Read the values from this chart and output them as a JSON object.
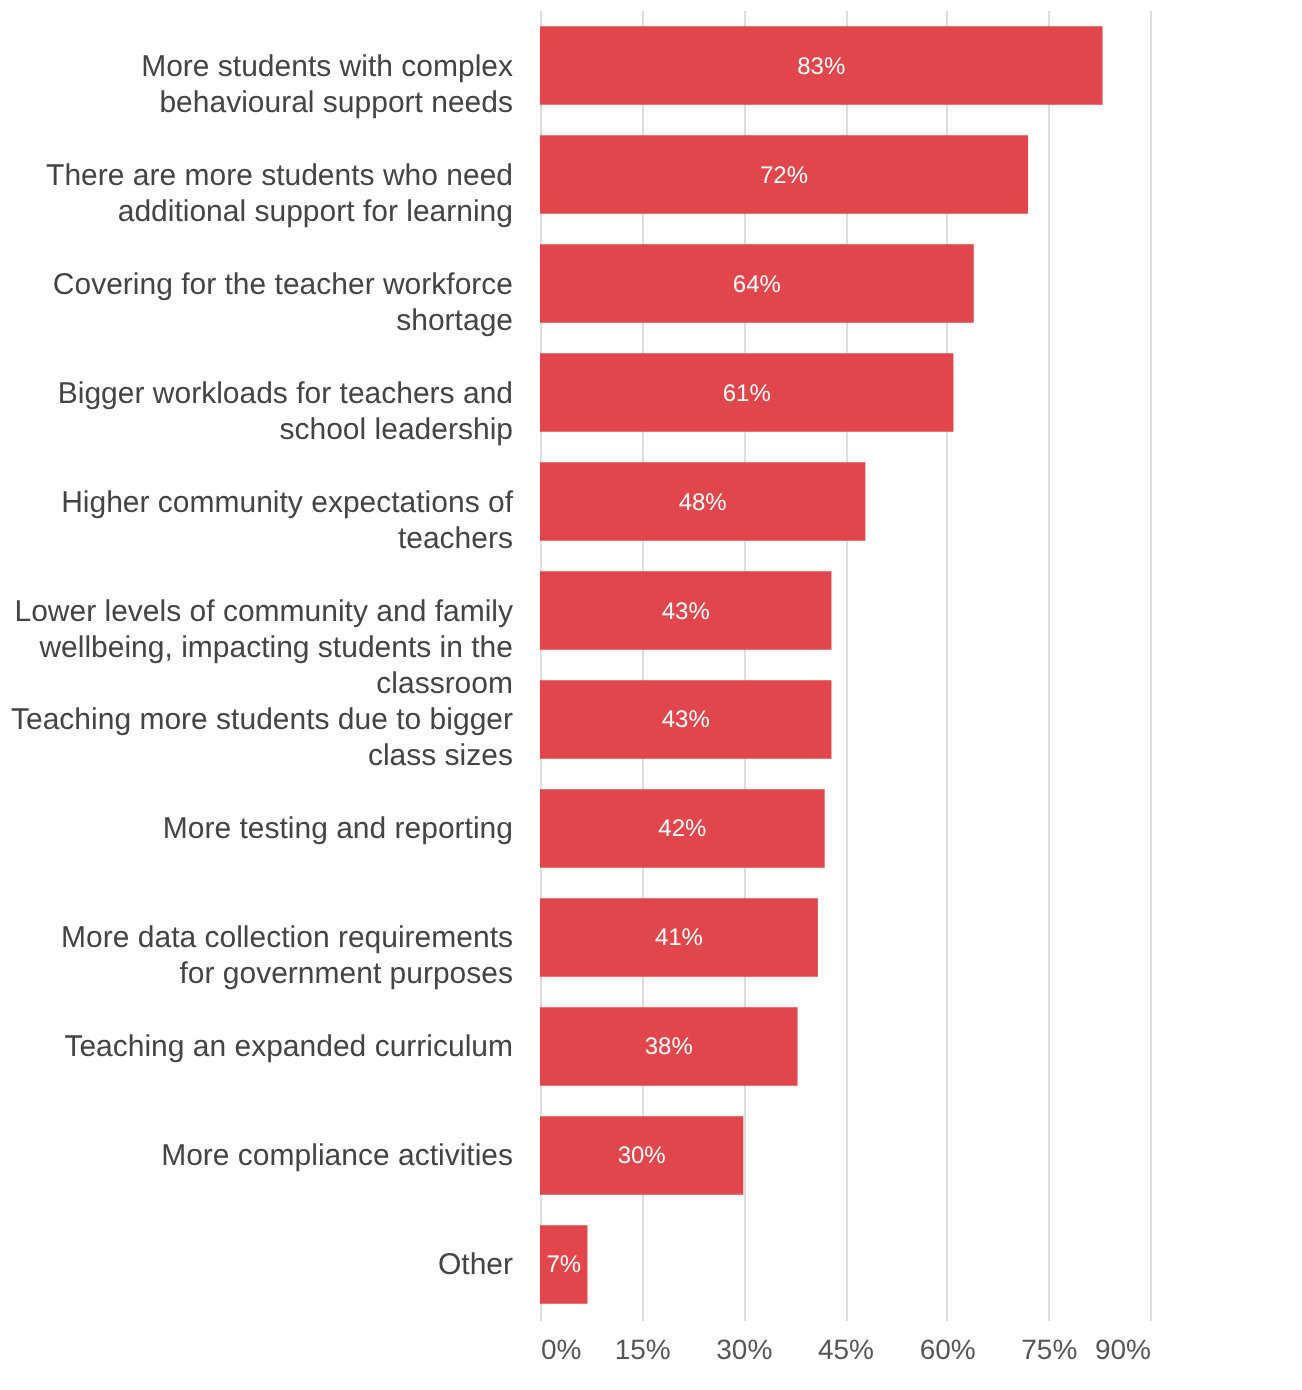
{
  "chart_data": {
    "type": "bar",
    "orientation": "horizontal",
    "categories": [
      "More students with complex behavioural support needs",
      "There are more students who need additional support for learning",
      "Covering for the teacher workforce shortage",
      "Bigger workloads for teachers and school leadership",
      "Higher community expectations of teachers",
      "Lower levels of community and family wellbeing, impacting students in the classroom",
      "Teaching more students due to bigger class sizes",
      "More testing and reporting",
      "More data collection requirements for government purposes",
      "Teaching an expanded curriculum",
      "More compliance activities",
      "Other"
    ],
    "values": [
      83,
      72,
      64,
      61,
      48,
      43,
      43,
      42,
      41,
      38,
      30,
      7
    ],
    "value_labels": [
      "83%",
      "72%",
      "64%",
      "61%",
      "48%",
      "43%",
      "43%",
      "42%",
      "41%",
      "38%",
      "30%",
      "7%"
    ],
    "color": "#e0464b",
    "xlim": [
      0,
      90
    ],
    "xticks": [
      {
        "value": 0,
        "label": "0%"
      },
      {
        "value": 15,
        "label": "15%"
      },
      {
        "value": 30,
        "label": "30%"
      },
      {
        "value": 45,
        "label": "45%"
      },
      {
        "value": 60,
        "label": "60%"
      },
      {
        "value": 75,
        "label": "75%"
      },
      {
        "value": 90,
        "label": "90%"
      }
    ],
    "grid": "x"
  }
}
